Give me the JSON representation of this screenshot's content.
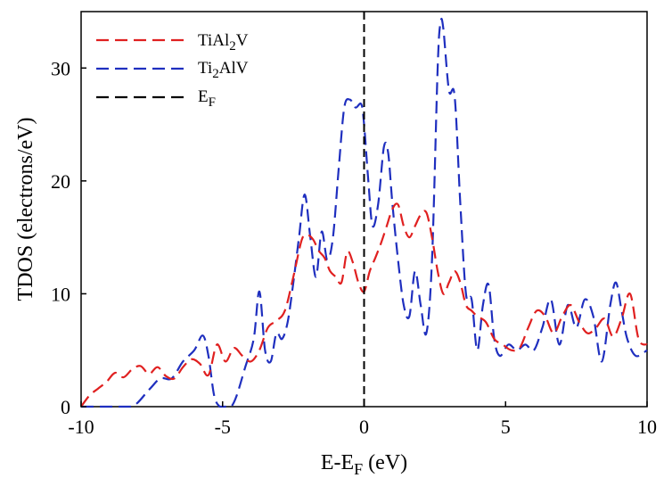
{
  "chart_data": {
    "type": "line",
    "title": "",
    "xlabel": "E-E",
    "xlabel_sub": "F",
    "xlabel_unit": " (eV)",
    "ylabel": "TDOS (electrons/eV)",
    "xlim": [
      -10,
      10
    ],
    "ylim": [
      0,
      35
    ],
    "xticks": [
      -10,
      -5,
      0,
      5,
      10
    ],
    "yticks": [
      0,
      10,
      20,
      30
    ],
    "grid": false,
    "legend_position": "top-left",
    "fermi_level": 0,
    "series": [
      {
        "name": "TiAl",
        "name_sub": "2",
        "name_suffix": "V",
        "color": "#e02020",
        "x": [
          -10,
          -9.7,
          -9.4,
          -9.1,
          -8.8,
          -8.5,
          -8.2,
          -7.9,
          -7.6,
          -7.3,
          -7.0,
          -6.7,
          -6.4,
          -6.1,
          -5.8,
          -5.5,
          -5.2,
          -4.9,
          -4.6,
          -4.3,
          -4.0,
          -3.7,
          -3.4,
          -3.1,
          -2.8,
          -2.5,
          -2.2,
          -2.0,
          -1.8,
          -1.6,
          -1.4,
          -1.2,
          -1.0,
          -0.8,
          -0.6,
          -0.4,
          -0.2,
          0.0,
          0.2,
          0.4,
          0.6,
          0.8,
          1.0,
          1.2,
          1.4,
          1.6,
          1.8,
          2.0,
          2.2,
          2.4,
          2.6,
          2.8,
          3.0,
          3.2,
          3.4,
          3.6,
          3.8,
          4.0,
          4.3,
          4.6,
          4.9,
          5.2,
          5.5,
          5.8,
          6.1,
          6.4,
          6.7,
          7.0,
          7.3,
          7.6,
          7.9,
          8.2,
          8.5,
          8.8,
          9.1,
          9.4,
          9.7,
          10.0
        ],
        "values": [
          0.0,
          1.0,
          1.6,
          2.2,
          3.0,
          2.6,
          3.3,
          3.6,
          2.9,
          3.5,
          2.7,
          2.5,
          3.5,
          4.2,
          3.8,
          2.8,
          5.5,
          4.0,
          5.2,
          4.5,
          4.0,
          5.0,
          7.0,
          7.6,
          8.5,
          11.5,
          14.8,
          15.2,
          14.8,
          13.8,
          13.2,
          12.0,
          11.5,
          11.0,
          13.7,
          12.8,
          11.0,
          10.2,
          12.0,
          13.2,
          14.5,
          16.0,
          17.5,
          17.9,
          16.0,
          15.0,
          16.0,
          17.0,
          17.2,
          15.0,
          12.0,
          10.0,
          11.0,
          12.0,
          11.0,
          9.0,
          8.5,
          8.0,
          7.5,
          6.0,
          5.5,
          5.0,
          5.2,
          7.0,
          8.5,
          8.0,
          6.5,
          8.0,
          9.0,
          7.5,
          6.5,
          7.0,
          7.8,
          6.2,
          7.8,
          10.0,
          6.0,
          5.5
        ]
      },
      {
        "name": "Ti",
        "name_sub": "2",
        "name_suffix": "AlV",
        "color": "#1f2fbf",
        "x": [
          -10,
          -9.0,
          -8.2,
          -7.6,
          -7.2,
          -6.8,
          -6.4,
          -6.0,
          -5.7,
          -5.5,
          -5.3,
          -5.1,
          -4.9,
          -4.7,
          -4.5,
          -4.2,
          -3.9,
          -3.7,
          -3.5,
          -3.3,
          -3.1,
          -2.9,
          -2.7,
          -2.5,
          -2.3,
          -2.1,
          -1.9,
          -1.7,
          -1.5,
          -1.3,
          -1.1,
          -0.9,
          -0.7,
          -0.5,
          -0.3,
          -0.1,
          0.0,
          0.15,
          0.3,
          0.5,
          0.7,
          0.85,
          1.0,
          1.2,
          1.4,
          1.6,
          1.8,
          2.0,
          2.2,
          2.4,
          2.6,
          2.7,
          2.8,
          3.0,
          3.2,
          3.4,
          3.6,
          3.8,
          4.0,
          4.2,
          4.4,
          4.6,
          4.8,
          5.1,
          5.4,
          5.7,
          6.0,
          6.3,
          6.6,
          6.9,
          7.2,
          7.5,
          7.8,
          8.1,
          8.4,
          8.7,
          8.9,
          9.1,
          9.3,
          9.6,
          10.0
        ],
        "values": [
          0.0,
          0.0,
          0.0,
          1.5,
          2.5,
          2.5,
          4.0,
          5.0,
          6.3,
          4.5,
          1.0,
          0.0,
          0.0,
          0.0,
          1.0,
          3.5,
          6.0,
          10.2,
          5.0,
          4.0,
          6.5,
          6.0,
          7.5,
          11.0,
          15.0,
          18.8,
          15.0,
          11.5,
          15.5,
          13.0,
          15.0,
          21.0,
          26.5,
          27.2,
          26.5,
          26.8,
          25.0,
          20.0,
          16.0,
          18.0,
          23.0,
          22.5,
          18.0,
          13.0,
          9.0,
          8.0,
          12.0,
          9.0,
          6.5,
          13.0,
          30.0,
          34.0,
          33.5,
          28.0,
          27.5,
          18.0,
          10.0,
          9.5,
          5.0,
          9.0,
          10.8,
          6.0,
          4.5,
          5.5,
          5.0,
          5.5,
          5.0,
          7.0,
          9.5,
          5.5,
          9.0,
          7.0,
          9.5,
          8.0,
          4.0,
          9.0,
          11.0,
          8.5,
          6.0,
          4.5,
          5.0
        ]
      },
      {
        "name": "E",
        "name_sub": "F",
        "name_suffix": "",
        "color": "#000000"
      }
    ]
  }
}
